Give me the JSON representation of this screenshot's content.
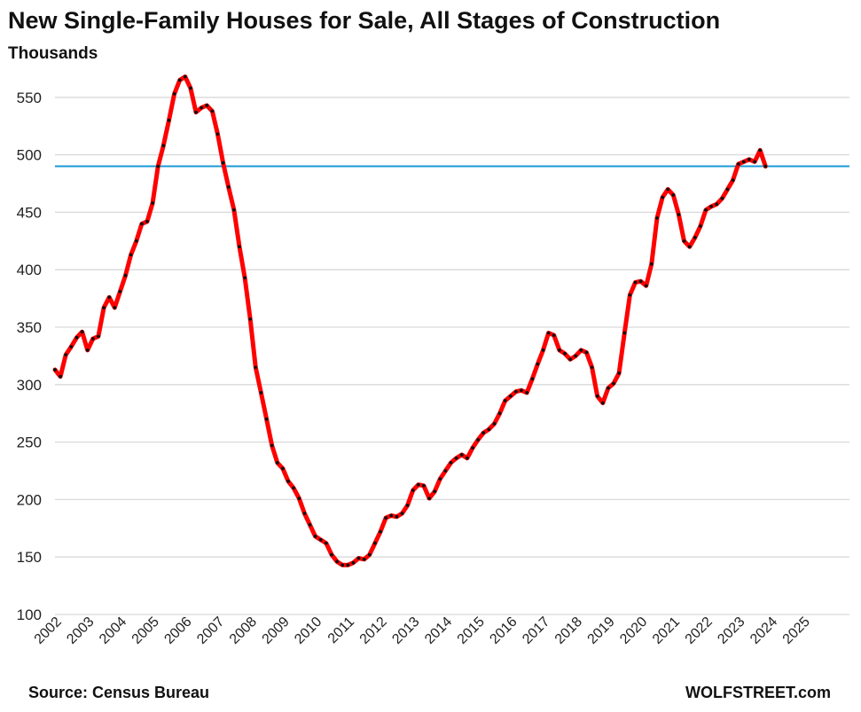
{
  "header": {
    "title": "New Single-Family Houses for Sale, All Stages of Construction",
    "subtitle": "Thousands"
  },
  "footer": {
    "source": "Source: Census Bureau",
    "brand": "WOLFSTREET.com"
  },
  "colors": {
    "line": "#ff0000",
    "markers": "#111111",
    "reference_line": "#1a9ad6",
    "grid": "#d9d9d9"
  },
  "chart_data": {
    "type": "line",
    "title": "New Single-Family Houses for Sale, All Stages of Construction",
    "ylabel": "Thousands",
    "ylim": [
      100,
      575
    ],
    "yticks": [
      100,
      150,
      200,
      250,
      300,
      350,
      400,
      450,
      500,
      550
    ],
    "xticks": [
      "2002",
      "2003",
      "2004",
      "2005",
      "2006",
      "2007",
      "2008",
      "2009",
      "2010",
      "2011",
      "2012",
      "2013",
      "2014",
      "2015",
      "2016",
      "2017",
      "2018",
      "2019",
      "2020",
      "2021",
      "2022",
      "2023",
      "2024",
      "2025"
    ],
    "grid": "horizontal",
    "legend": "none",
    "reference_line": {
      "y": 490
    },
    "series": [
      {
        "points": [
          [
            "2002-01",
            313
          ],
          [
            "2002-03",
            307
          ],
          [
            "2002-05",
            326
          ],
          [
            "2002-07",
            333
          ],
          [
            "2002-09",
            341
          ],
          [
            "2002-11",
            346
          ],
          [
            "2003-01",
            330
          ],
          [
            "2003-03",
            340
          ],
          [
            "2003-05",
            342
          ],
          [
            "2003-07",
            367
          ],
          [
            "2003-09",
            376
          ],
          [
            "2003-11",
            367
          ],
          [
            "2004-01",
            381
          ],
          [
            "2004-03",
            395
          ],
          [
            "2004-05",
            413
          ],
          [
            "2004-07",
            425
          ],
          [
            "2004-09",
            440
          ],
          [
            "2004-11",
            442
          ],
          [
            "2005-01",
            458
          ],
          [
            "2005-03",
            490
          ],
          [
            "2005-05",
            508
          ],
          [
            "2005-07",
            530
          ],
          [
            "2005-09",
            553
          ],
          [
            "2005-11",
            565
          ],
          [
            "2006-01",
            568
          ],
          [
            "2006-03",
            558
          ],
          [
            "2006-05",
            537
          ],
          [
            "2006-07",
            541
          ],
          [
            "2006-09",
            543
          ],
          [
            "2006-11",
            538
          ],
          [
            "2007-01",
            518
          ],
          [
            "2007-03",
            493
          ],
          [
            "2007-05",
            472
          ],
          [
            "2007-07",
            452
          ],
          [
            "2007-09",
            420
          ],
          [
            "2007-11",
            393
          ],
          [
            "2008-01",
            357
          ],
          [
            "2008-03",
            315
          ],
          [
            "2008-05",
            293
          ],
          [
            "2008-07",
            270
          ],
          [
            "2008-09",
            247
          ],
          [
            "2008-11",
            232
          ],
          [
            "2009-01",
            227
          ],
          [
            "2009-03",
            216
          ],
          [
            "2009-05",
            210
          ],
          [
            "2009-07",
            201
          ],
          [
            "2009-09",
            188
          ],
          [
            "2009-11",
            178
          ],
          [
            "2010-01",
            168
          ],
          [
            "2010-03",
            165
          ],
          [
            "2010-05",
            162
          ],
          [
            "2010-07",
            152
          ],
          [
            "2010-09",
            146
          ],
          [
            "2010-11",
            143
          ],
          [
            "2011-01",
            143
          ],
          [
            "2011-03",
            145
          ],
          [
            "2011-05",
            149
          ],
          [
            "2011-07",
            148
          ],
          [
            "2011-09",
            152
          ],
          [
            "2011-11",
            162
          ],
          [
            "2012-01",
            172
          ],
          [
            "2012-03",
            184
          ],
          [
            "2012-05",
            186
          ],
          [
            "2012-07",
            185
          ],
          [
            "2012-09",
            188
          ],
          [
            "2012-11",
            195
          ],
          [
            "2013-01",
            208
          ],
          [
            "2013-03",
            213
          ],
          [
            "2013-05",
            212
          ],
          [
            "2013-07",
            201
          ],
          [
            "2013-09",
            207
          ],
          [
            "2013-11",
            218
          ],
          [
            "2014-01",
            225
          ],
          [
            "2014-03",
            232
          ],
          [
            "2014-05",
            236
          ],
          [
            "2014-07",
            239
          ],
          [
            "2014-09",
            236
          ],
          [
            "2014-11",
            245
          ],
          [
            "2015-01",
            252
          ],
          [
            "2015-03",
            258
          ],
          [
            "2015-05",
            261
          ],
          [
            "2015-07",
            266
          ],
          [
            "2015-09",
            275
          ],
          [
            "2015-11",
            286
          ],
          [
            "2016-01",
            290
          ],
          [
            "2016-03",
            294
          ],
          [
            "2016-05",
            295
          ],
          [
            "2016-07",
            293
          ],
          [
            "2016-09",
            305
          ],
          [
            "2016-11",
            318
          ],
          [
            "2017-01",
            330
          ],
          [
            "2017-03",
            345
          ],
          [
            "2017-05",
            343
          ],
          [
            "2017-07",
            330
          ],
          [
            "2017-09",
            327
          ],
          [
            "2017-11",
            322
          ],
          [
            "2018-01",
            325
          ],
          [
            "2018-03",
            330
          ],
          [
            "2018-05",
            328
          ],
          [
            "2018-07",
            315
          ],
          [
            "2018-09",
            290
          ],
          [
            "2018-11",
            284
          ],
          [
            "2019-01",
            297
          ],
          [
            "2019-03",
            301
          ],
          [
            "2019-05",
            310
          ],
          [
            "2019-07",
            345
          ],
          [
            "2019-09",
            378
          ],
          [
            "2019-11",
            389
          ],
          [
            "2020-01",
            390
          ],
          [
            "2020-03",
            386
          ],
          [
            "2020-05",
            405
          ],
          [
            "2020-07",
            445
          ],
          [
            "2020-09",
            463
          ],
          [
            "2020-11",
            470
          ],
          [
            "2021-01",
            465
          ],
          [
            "2021-03",
            448
          ],
          [
            "2021-05",
            425
          ],
          [
            "2021-07",
            420
          ],
          [
            "2021-09",
            428
          ],
          [
            "2021-11",
            438
          ],
          [
            "2022-01",
            452
          ],
          [
            "2022-03",
            455
          ],
          [
            "2022-05",
            457
          ],
          [
            "2022-07",
            462
          ],
          [
            "2022-09",
            470
          ],
          [
            "2022-11",
            478
          ],
          [
            "2023-01",
            492
          ],
          [
            "2023-03",
            494
          ],
          [
            "2023-05",
            496
          ],
          [
            "2023-07",
            494
          ],
          [
            "2023-09",
            504
          ],
          [
            "2023-11",
            490
          ]
        ]
      }
    ]
  }
}
